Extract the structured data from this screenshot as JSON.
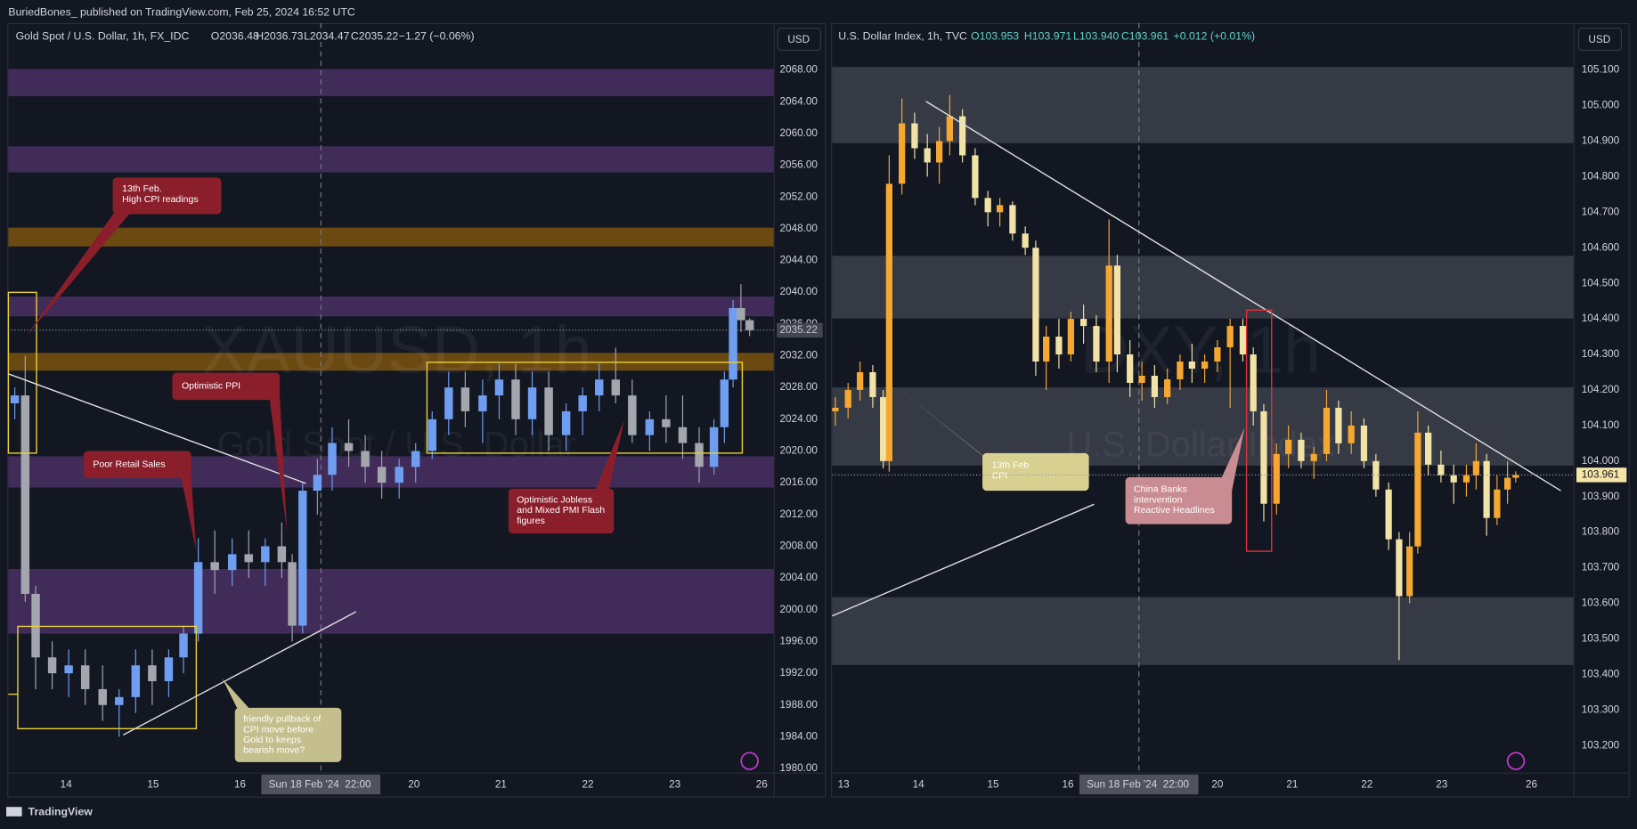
{
  "header": {
    "byline": "BuriedBones_ published on TradingView.com, Feb 25, 2024 16:52 UTC"
  },
  "footer": {
    "brand": "TradingView"
  },
  "chart_data": [
    {
      "type": "candlestick",
      "title": "Gold Spot / U.S. Dollar, 1h, FX_IDC",
      "ohlc_text": [
        "O2036.48",
        "H2036.73",
        "L2034.47",
        "C2035.22",
        "−1.27 (−0.06%)"
      ],
      "watermark": [
        "XAUUSD, 1h",
        "Gold Spot / U.S. Dollar"
      ],
      "currency": "USD",
      "annotations": [
        {
          "lines": [
            "13th Feb.",
            "High CPI readings"
          ]
        },
        {
          "lines": [
            "Optimistic PPI"
          ]
        },
        {
          "lines": [
            "Poor Retail Sales"
          ]
        },
        {
          "lines": [
            "Optimistic Jobless",
            "and Mixed PMI Flash",
            "figures"
          ]
        },
        {
          "lines": [
            "friendly pullback of",
            "CPI move before",
            "Gold to keeps",
            "bearish move?"
          ]
        }
      ],
      "up_color": "#6f9ef0",
      "down_color": "#a3a6ad",
      "xlim": [
        0.336,
        9.136
      ],
      "ylim": [
        1979.5,
        2073.9
      ],
      "xticks": [
        {
          "value": 1,
          "label": "14"
        },
        {
          "value": 2,
          "label": "15"
        },
        {
          "value": 3,
          "label": "16"
        },
        {
          "value": 5,
          "label": "20"
        },
        {
          "value": 6,
          "label": "21"
        },
        {
          "value": 7,
          "label": "22"
        },
        {
          "value": 8,
          "label": "23"
        },
        {
          "value": 9,
          "label": "26"
        }
      ],
      "yticks": [
        {
          "value": 1980,
          "label": "1980.00"
        },
        {
          "value": 1984,
          "label": "1984.00"
        },
        {
          "value": 1988,
          "label": "1988.00"
        },
        {
          "value": 1992,
          "label": "1992.00"
        },
        {
          "value": 1996,
          "label": "1996.00"
        },
        {
          "value": 2000,
          "label": "2000.00"
        },
        {
          "value": 2004,
          "label": "2004.00"
        },
        {
          "value": 2008,
          "label": "2008.00"
        },
        {
          "value": 2012,
          "label": "2012.00"
        },
        {
          "value": 2016,
          "label": "2016.00"
        },
        {
          "value": 2020,
          "label": "2020.00"
        },
        {
          "value": 2024,
          "label": "2024.00"
        },
        {
          "value": 2028,
          "label": "2028.00"
        },
        {
          "value": 2032,
          "label": "2032.00"
        },
        {
          "value": 2036,
          "label": "2036.00"
        },
        {
          "value": 2040,
          "label": "2040.00"
        },
        {
          "value": 2044,
          "label": "2044.00"
        },
        {
          "value": 2048,
          "label": "2048.00"
        },
        {
          "value": 2052,
          "label": "2052.00"
        },
        {
          "value": 2056,
          "label": "2056.00"
        },
        {
          "value": 2060,
          "label": "2060.00"
        },
        {
          "value": 2064,
          "label": "2064.00"
        },
        {
          "value": 2068,
          "label": "2068.00"
        }
      ],
      "crosshair": {
        "x": 3.93,
        "date_label": "Sun 18 Feb '24",
        "time_label": "22:00"
      },
      "last_price": 2035.22,
      "x": [
        0.41,
        0.53,
        0.65,
        0.84,
        1.03,
        1.22,
        1.42,
        1.61,
        1.8,
        1.99,
        2.18,
        2.35,
        2.52,
        2.71,
        2.91,
        3.1,
        3.29,
        3.48,
        3.6,
        3.72,
        3.89,
        4.06,
        4.25,
        4.44,
        4.63,
        4.83,
        5.02,
        5.21,
        5.4,
        5.59,
        5.79,
        5.98,
        6.17,
        6.36,
        6.55,
        6.75,
        6.94,
        7.13,
        7.32,
        7.51,
        7.71,
        7.9,
        8.09,
        8.28,
        8.45,
        8.57,
        8.67,
        8.76,
        8.86
      ],
      "open": [
        2026,
        2027,
        2002,
        1994,
        1992,
        1993,
        1990,
        1988,
        1989,
        1993,
        1991,
        1994,
        1997,
        2006,
        2005,
        2007,
        2006,
        2008,
        2006,
        1998,
        2015,
        2017,
        2021,
        2020,
        2018,
        2016,
        2018,
        2020,
        2024,
        2028,
        2025,
        2027,
        2029,
        2024,
        2028,
        2022,
        2025,
        2027,
        2029,
        2027,
        2022,
        2024,
        2023,
        2021,
        2018,
        2023,
        2029,
        2038,
        2036.48
      ],
      "high": [
        2028,
        2032,
        2003,
        1996,
        1995,
        1995,
        1993,
        1990,
        1995,
        1995,
        1995,
        1998,
        2009,
        2010,
        2009,
        2010,
        2009,
        2011,
        2007,
        2016,
        2019,
        2023,
        2024,
        2022,
        2020,
        2019,
        2021,
        2025,
        2030,
        2030,
        2029,
        2031,
        2031,
        2030,
        2030,
        2026,
        2028,
        2031,
        2033,
        2029,
        2025,
        2027,
        2027,
        2023,
        2024,
        2030,
        2039,
        2041,
        2036.73
      ],
      "low": [
        2024,
        2001,
        1990,
        1990,
        1989,
        1988,
        1986,
        1984,
        1987,
        1988,
        1989,
        1992,
        1996,
        2002,
        2003,
        2004,
        2003,
        2004,
        1996,
        1997,
        2012,
        2015,
        2018,
        2016,
        2014,
        2014,
        2016,
        2019,
        2022,
        2023,
        2021,
        2024,
        2022,
        2022,
        2020,
        2020,
        2022,
        2025,
        2026,
        2021,
        2020,
        2021,
        2019,
        2016,
        2017,
        2021,
        2028,
        2035,
        2034.47
      ],
      "close": [
        2027,
        2002,
        1994,
        1992,
        1993,
        1990,
        1988,
        1989,
        1993,
        1991,
        1994,
        1997,
        2006,
        2005,
        2007,
        2006,
        2008,
        2006,
        1998,
        2015,
        2017,
        2021,
        2020,
        2018,
        2016,
        2018,
        2020,
        2024,
        2028,
        2025,
        2027,
        2029,
        2024,
        2028,
        2022,
        2025,
        2027,
        2029,
        2027,
        2022,
        2024,
        2023,
        2021,
        2018,
        2023,
        2029,
        2038,
        2036.48,
        2035.22
      ]
    },
    {
      "type": "candlestick",
      "title": "U.S. Dollar Index, 1h, TVC",
      "ohlc_text": [
        "O103.953",
        "H103.971",
        "L103.940",
        "C103.961",
        "+0.012 (+0.01%)"
      ],
      "watermark": [
        "DXY, 1h",
        "U.S. Dollar Index"
      ],
      "currency": "USD",
      "annotations": [
        {
          "lines": [
            "13th Feb",
            "CPI"
          ]
        },
        {
          "lines": [
            "China Banks",
            "intervention",
            "Reactive Headlines"
          ]
        }
      ],
      "up_color": "#f5a732",
      "down_color": "#f1e2a6",
      "xlim": [
        0.846,
        10.76
      ],
      "ylim": [
        103.124,
        105.232
      ],
      "xticks": [
        {
          "value": 1,
          "label": "13"
        },
        {
          "value": 2,
          "label": "14"
        },
        {
          "value": 3,
          "label": "15"
        },
        {
          "value": 4,
          "label": "16"
        },
        {
          "value": 6,
          "label": "20"
        },
        {
          "value": 7,
          "label": "21"
        },
        {
          "value": 8,
          "label": "22"
        },
        {
          "value": 9,
          "label": "23"
        },
        {
          "value": 10.2,
          "label": "26"
        }
      ],
      "yticks": [
        {
          "value": 103.2,
          "label": "103.200"
        },
        {
          "value": 103.3,
          "label": "103.300"
        },
        {
          "value": 103.4,
          "label": "103.400"
        },
        {
          "value": 103.5,
          "label": "103.500"
        },
        {
          "value": 103.6,
          "label": "103.600"
        },
        {
          "value": 103.7,
          "label": "103.700"
        },
        {
          "value": 103.8,
          "label": "103.800"
        },
        {
          "value": 103.9,
          "label": "103.900"
        },
        {
          "value": 104,
          "label": "104.000"
        },
        {
          "value": 104.1,
          "label": "104.100"
        },
        {
          "value": 104.2,
          "label": "104.200"
        },
        {
          "value": 104.3,
          "label": "104.300"
        },
        {
          "value": 104.4,
          "label": "104.400"
        },
        {
          "value": 104.5,
          "label": "104.500"
        },
        {
          "value": 104.6,
          "label": "104.600"
        },
        {
          "value": 104.7,
          "label": "104.700"
        },
        {
          "value": 104.8,
          "label": "104.800"
        },
        {
          "value": 104.9,
          "label": "104.900"
        },
        {
          "value": 105,
          "label": "105.000"
        },
        {
          "value": 105.1,
          "label": "105.100"
        }
      ],
      "crosshair": {
        "x": 4.95,
        "date_label": "Sun 18 Feb '24",
        "time_label": "22:00"
      },
      "last_price": 103.961,
      "x": [
        0.89,
        1.06,
        1.22,
        1.39,
        1.53,
        1.61,
        1.78,
        1.95,
        2.12,
        2.28,
        2.42,
        2.59,
        2.76,
        2.93,
        3.09,
        3.26,
        3.43,
        3.57,
        3.71,
        3.88,
        4.04,
        4.21,
        4.38,
        4.55,
        4.66,
        4.83,
        4.99,
        5.16,
        5.33,
        5.5,
        5.66,
        5.83,
        6,
        6.17,
        6.34,
        6.48,
        6.62,
        6.79,
        6.95,
        7.12,
        7.29,
        7.46,
        7.62,
        7.79,
        7.96,
        8.12,
        8.29,
        8.43,
        8.57,
        8.68,
        8.82,
        8.99,
        9.16,
        9.33,
        9.46,
        9.6,
        9.74,
        9.88,
        9.99
      ],
      "open": [
        104.14,
        104.15,
        104.2,
        104.25,
        104.18,
        104,
        104.78,
        104.95,
        104.88,
        104.84,
        104.9,
        104.97,
        104.86,
        104.74,
        104.7,
        104.72,
        104.64,
        104.6,
        104.28,
        104.35,
        104.3,
        104.4,
        104.38,
        104.28,
        104.55,
        104.3,
        104.22,
        104.24,
        104.18,
        104.23,
        104.28,
        104.26,
        104.28,
        104.32,
        104.38,
        104.3,
        104.14,
        103.88,
        104.02,
        104.06,
        104,
        104.02,
        104.15,
        104.05,
        104.1,
        104,
        103.92,
        103.78,
        103.62,
        103.76,
        104.08,
        103.99,
        103.96,
        103.94,
        103.96,
        104,
        103.84,
        103.92,
        103.953
      ],
      "high": [
        104.18,
        104.22,
        104.28,
        104.27,
        104.2,
        104.86,
        105.02,
        104.98,
        104.92,
        104.94,
        105.03,
        104.99,
        104.88,
        104.76,
        104.74,
        104.73,
        104.66,
        104.62,
        104.38,
        104.4,
        104.42,
        104.44,
        104.41,
        104.68,
        104.58,
        104.34,
        104.28,
        104.27,
        104.26,
        104.3,
        104.33,
        104.3,
        104.34,
        104.4,
        104.4,
        104.32,
        104.16,
        104.05,
        104.1,
        104.08,
        104.04,
        104.2,
        104.17,
        104.14,
        104.12,
        104.02,
        103.94,
        103.8,
        103.8,
        104.14,
        104.1,
        104.03,
        103.99,
        103.99,
        104.05,
        104.02,
        103.96,
        104,
        103.971
      ],
      "low": [
        104.1,
        104.12,
        104.17,
        104.15,
        103.98,
        103.97,
        104.75,
        104.85,
        104.8,
        104.78,
        104.86,
        104.84,
        104.72,
        104.66,
        104.66,
        104.62,
        104.58,
        104.24,
        104.2,
        104.26,
        104.28,
        104.33,
        104.25,
        104.22,
        104.25,
        104.18,
        104.17,
        104.15,
        104.16,
        104.2,
        104.22,
        104.22,
        104.25,
        104.15,
        104.28,
        104.1,
        103.83,
        103.85,
        103.98,
        103.98,
        103.95,
        104,
        104.02,
        104.02,
        103.98,
        103.9,
        103.75,
        103.44,
        103.6,
        103.74,
        103.96,
        103.94,
        103.88,
        103.9,
        103.92,
        103.79,
        103.82,
        103.88,
        103.94
      ],
      "close": [
        104.15,
        104.2,
        104.25,
        104.18,
        104,
        104.78,
        104.95,
        104.88,
        104.84,
        104.9,
        104.97,
        104.86,
        104.74,
        104.7,
        104.72,
        104.64,
        104.6,
        104.28,
        104.35,
        104.3,
        104.4,
        104.38,
        104.28,
        104.55,
        104.3,
        104.22,
        104.24,
        104.18,
        104.23,
        104.28,
        104.26,
        104.28,
        104.32,
        104.38,
        104.3,
        104.14,
        103.88,
        104.02,
        104.06,
        104,
        104.02,
        104.15,
        104.05,
        104.1,
        104,
        103.92,
        103.78,
        103.62,
        103.76,
        104.08,
        103.99,
        103.96,
        103.94,
        103.96,
        104,
        103.84,
        103.92,
        103.953,
        103.961
      ]
    }
  ]
}
